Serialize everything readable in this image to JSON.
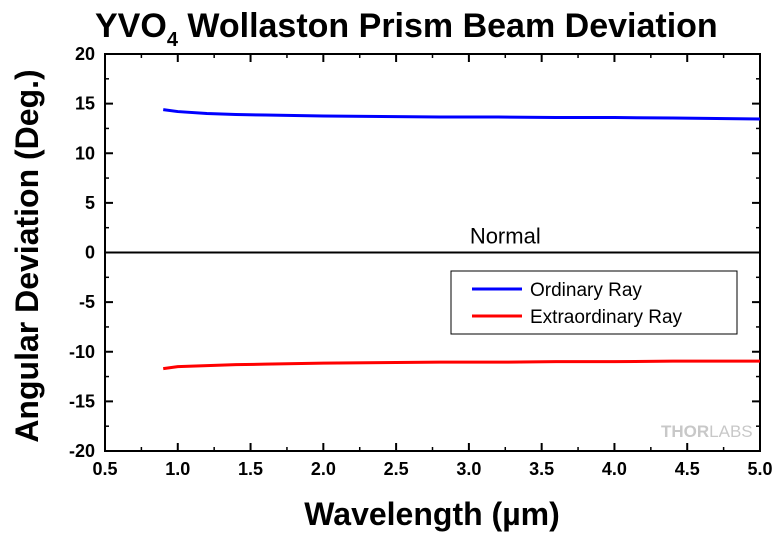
{
  "chart_data": {
    "type": "line",
    "title": "YVO",
    "title_subscript": "4",
    "title_rest": " Wollaston Prism Beam Deviation",
    "xlabel": "Wavelength (µm)",
    "ylabel": "Angular Deviation (Deg.)",
    "xlim": [
      0.5,
      5.0
    ],
    "ylim": [
      -20,
      20
    ],
    "x_ticks": [
      0.5,
      1.0,
      1.5,
      2.0,
      2.5,
      3.0,
      3.5,
      4.0,
      4.5,
      5.0
    ],
    "x_tick_labels": [
      "0.5",
      "1.0",
      "1.5",
      "2.0",
      "2.5",
      "3.0",
      "3.5",
      "4.0",
      "4.5",
      "5.0"
    ],
    "y_ticks": [
      20,
      15,
      10,
      5,
      0,
      -5,
      -10,
      -15,
      -20
    ],
    "y_tick_labels": [
      "20",
      "15",
      "10",
      "5",
      "0",
      "-5",
      "-10",
      "-15",
      "-20"
    ],
    "grid": false,
    "legend_position": "center-right",
    "annotations": [
      {
        "text": "Normal",
        "x": 3.25,
        "y": 1.7
      }
    ],
    "series": [
      {
        "name": "Ordinary Ray",
        "color": "#0000ff",
        "x": [
          0.9,
          1.0,
          1.2,
          1.4,
          1.6,
          1.8,
          2.0,
          2.4,
          2.8,
          3.2,
          3.6,
          4.0,
          4.4,
          4.7,
          5.0
        ],
        "y": [
          14.4,
          14.2,
          14.0,
          13.9,
          13.85,
          13.8,
          13.75,
          13.7,
          13.65,
          13.65,
          13.6,
          13.6,
          13.55,
          13.5,
          13.45
        ]
      },
      {
        "name": "Extraordinary Ray",
        "color": "#ff0000",
        "x": [
          0.9,
          1.0,
          1.2,
          1.4,
          1.6,
          1.8,
          2.0,
          2.4,
          2.8,
          3.2,
          3.6,
          4.0,
          4.4,
          4.7,
          5.0
        ],
        "y": [
          -11.7,
          -11.5,
          -11.4,
          -11.3,
          -11.25,
          -11.2,
          -11.15,
          -11.1,
          -11.05,
          -11.05,
          -11.0,
          -11.0,
          -10.95,
          -10.95,
          -10.95
        ]
      }
    ],
    "reference_line": {
      "y": 0,
      "color": "#000000"
    },
    "watermark": {
      "text_a": "THOR",
      "text_b": "LABS"
    }
  }
}
